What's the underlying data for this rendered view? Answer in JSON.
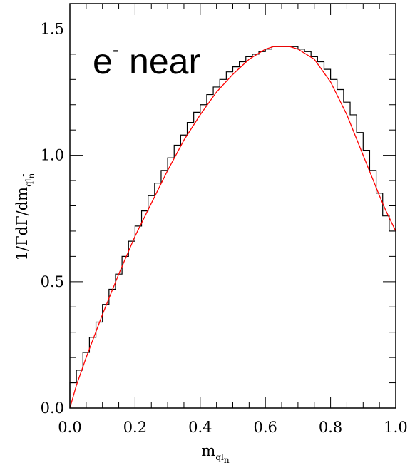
{
  "chart_data": {
    "type": "line",
    "title": "",
    "annotation": {
      "base": "e",
      "sup": "-",
      "rest": " near"
    },
    "xlabel": {
      "base": "m",
      "sub": "ql",
      "subsub": "n",
      "sup": "-"
    },
    "ylabel": {
      "text": "1/ΓdΓ/dm",
      "sub": "ql",
      "subsub": "n",
      "sup": "-"
    },
    "xlim": [
      0.0,
      1.0
    ],
    "ylim": [
      0.0,
      1.6
    ],
    "x_ticks": [
      0.0,
      0.2,
      0.4,
      0.6,
      0.8,
      1.0
    ],
    "x_tick_labels": [
      "0.0",
      "0.2",
      "0.4",
      "0.6",
      "0.8",
      "1.0"
    ],
    "y_ticks": [
      0.0,
      0.5,
      1.0,
      1.5
    ],
    "y_tick_labels": [
      "0.0",
      "0.5",
      "1.0",
      "1.5"
    ],
    "x_minor_step": 0.05,
    "y_minor_step": 0.1,
    "grid": false,
    "series": [
      {
        "kind": "histogram",
        "color": "#000000",
        "bin_edges": [
          0.0,
          0.02,
          0.04,
          0.06,
          0.08,
          0.1,
          0.12,
          0.14,
          0.16,
          0.18,
          0.2,
          0.22,
          0.24,
          0.26,
          0.28,
          0.3,
          0.32,
          0.34,
          0.36,
          0.38,
          0.4,
          0.42,
          0.44,
          0.46,
          0.48,
          0.5,
          0.52,
          0.54,
          0.56,
          0.58,
          0.6,
          0.62,
          0.64,
          0.66,
          0.68,
          0.7,
          0.72,
          0.74,
          0.76,
          0.78,
          0.8,
          0.82,
          0.84,
          0.86,
          0.88,
          0.9,
          0.92,
          0.94,
          0.96,
          0.98,
          1.0
        ],
        "values": [
          0.1,
          0.15,
          0.22,
          0.28,
          0.34,
          0.41,
          0.47,
          0.53,
          0.6,
          0.66,
          0.72,
          0.78,
          0.84,
          0.89,
          0.94,
          0.99,
          1.04,
          1.08,
          1.13,
          1.17,
          1.2,
          1.24,
          1.27,
          1.3,
          1.33,
          1.35,
          1.37,
          1.39,
          1.4,
          1.41,
          1.42,
          1.43,
          1.43,
          1.43,
          1.43,
          1.42,
          1.41,
          1.39,
          1.37,
          1.34,
          1.3,
          1.26,
          1.21,
          1.16,
          1.09,
          1.02,
          0.94,
          0.85,
          0.76,
          0.7
        ]
      },
      {
        "kind": "curve",
        "color": "#ff0000",
        "x": [
          0.0,
          0.02,
          0.05,
          0.1,
          0.15,
          0.2,
          0.25,
          0.3,
          0.35,
          0.4,
          0.45,
          0.5,
          0.55,
          0.6,
          0.625,
          0.65,
          0.675,
          0.7,
          0.75,
          0.8,
          0.85,
          0.9,
          0.95,
          0.97,
          1.0
        ],
        "y": [
          0.0,
          0.09,
          0.2,
          0.37,
          0.53,
          0.68,
          0.81,
          0.94,
          1.06,
          1.16,
          1.25,
          1.32,
          1.38,
          1.42,
          1.43,
          1.43,
          1.43,
          1.42,
          1.38,
          1.29,
          1.16,
          1.0,
          0.84,
          0.78,
          0.7
        ]
      }
    ]
  }
}
